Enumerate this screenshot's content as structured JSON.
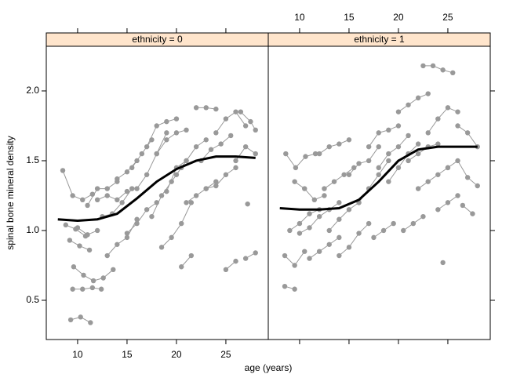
{
  "chart_data": {
    "type": "lattice-spaghetti",
    "xlabel": "age (years)",
    "ylabel": "spinal bone mineral density",
    "xlim": [
      6.83,
      29.29
    ],
    "ylim": [
      0.219,
      2.32
    ],
    "xticks": [
      10,
      15,
      20,
      25
    ],
    "yticks": [
      0.5,
      {
        "value": 1,
        "label": "1.0"
      },
      1.5,
      {
        "value": 2,
        "label": "2.0"
      }
    ],
    "point_color": "#999999",
    "smooth_color": "#000000",
    "strip_color": "#ffe5cc",
    "panels": [
      {
        "strip": "ethnicity = 0",
        "subjects": [
          {
            "x": [
              9.3,
              10.3,
              11.3
            ],
            "y": [
              0.36,
              0.38,
              0.34
            ]
          },
          {
            "x": [
              9.5,
              10.5,
              11.5,
              12.4
            ],
            "y": [
              0.58,
              0.58,
              0.59,
              0.58
            ]
          },
          {
            "x": [
              9.6,
              10.6,
              11.6,
              12.6,
              13.6
            ],
            "y": [
              0.74,
              0.68,
              0.64,
              0.66,
              0.72
            ]
          },
          {
            "x": [
              8.5,
              9.5,
              10.5,
              11.5
            ],
            "y": [
              1.43,
              1.25,
              1.22,
              1.26
            ]
          },
          {
            "x": [
              8.8,
              9.8,
              10.8
            ],
            "y": [
              1.04,
              1.01,
              0.96
            ]
          },
          {
            "x": [
              9.2,
              10.2,
              11.2
            ],
            "y": [
              0.93,
              0.89,
              0.86
            ]
          },
          {
            "x": [
              10,
              11,
              12
            ],
            "y": [
              1.02,
              0.97,
              1.0
            ]
          },
          {
            "x": [
              11,
              12,
              13,
              14
            ],
            "y": [
              1.18,
              1.3,
              1.3,
              1.35
            ]
          },
          {
            "x": [
              12,
              13,
              14,
              15
            ],
            "y": [
              1.22,
              1.25,
              1.22,
              1.28
            ]
          },
          {
            "x": [
              12.5,
              13.5,
              14.5,
              15.5
            ],
            "y": [
              1.1,
              1.12,
              1.2,
              1.3
            ]
          },
          {
            "x": [
              13,
              14,
              15,
              16
            ],
            "y": [
              0.82,
              0.9,
              0.95,
              1.08
            ]
          },
          {
            "x": [
              14,
              15,
              16
            ],
            "y": [
              1.37,
              1.42,
              1.5
            ]
          },
          {
            "x": [
              15,
              16,
              17,
              18
            ],
            "y": [
              0.98,
              1.05,
              1.15,
              1.2
            ]
          },
          {
            "x": [
              15.5,
              16.5,
              17.5
            ],
            "y": [
              1.45,
              1.55,
              1.65
            ]
          },
          {
            "x": [
              16,
              17,
              18,
              19
            ],
            "y": [
              1.3,
              1.4,
              1.55,
              1.7
            ]
          },
          {
            "x": [
              17,
              18,
              19,
              20
            ],
            "y": [
              1.6,
              1.75,
              1.78,
              1.8
            ]
          },
          {
            "x": [
              17.5,
              18.5,
              19.5,
              20.5
            ],
            "y": [
              1.1,
              1.25,
              1.35,
              1.45
            ]
          },
          {
            "x": [
              18,
              19,
              20,
              21
            ],
            "y": [
              1.55,
              1.65,
              1.7,
              1.72
            ]
          },
          {
            "x": [
              18.5,
              19.5,
              20.5,
              21.5
            ],
            "y": [
              0.88,
              0.95,
              1.05,
              1.2
            ]
          },
          {
            "x": [
              19,
              20,
              21
            ],
            "y": [
              1.28,
              1.45,
              1.5
            ]
          },
          {
            "x": [
              20,
              21,
              22,
              23
            ],
            "y": [
              1.4,
              1.5,
              1.6,
              1.65
            ]
          },
          {
            "x": [
              20.5,
              21.5
            ],
            "y": [
              0.74,
              0.82
            ]
          },
          {
            "x": [
              21,
              22,
              23,
              24
            ],
            "y": [
              1.2,
              1.25,
              1.3,
              1.35
            ]
          },
          {
            "x": [
              22,
              23,
              24
            ],
            "y": [
              1.88,
              1.88,
              1.87
            ]
          },
          {
            "x": [
              22.5,
              23.5,
              24.5,
              25.5
            ],
            "y": [
              1.5,
              1.58,
              1.62,
              1.68
            ]
          },
          {
            "x": [
              23,
              24,
              25,
              26
            ],
            "y": [
              1.3,
              1.32,
              1.4,
              1.45
            ]
          },
          {
            "x": [
              24,
              25,
              26,
              27
            ],
            "y": [
              1.7,
              1.8,
              1.85,
              1.75
            ]
          },
          {
            "x": [
              25,
              26
            ],
            "y": [
              0.72,
              0.78
            ]
          },
          {
            "x": [
              26,
              27,
              28
            ],
            "y": [
              1.5,
              1.6,
              1.55
            ]
          },
          {
            "x": [
              27,
              28
            ],
            "y": [
              0.8,
              0.84
            ]
          },
          {
            "x": [
              27.2
            ],
            "y": [
              1.19
            ]
          },
          {
            "x": [
              26.5,
              27.5,
              28
            ],
            "y": [
              1.85,
              1.78,
              1.72
            ]
          }
        ],
        "smooth": {
          "x": [
            8,
            10,
            12,
            14,
            16,
            18,
            20,
            22,
            24,
            26,
            28
          ],
          "y": [
            1.08,
            1.07,
            1.08,
            1.12,
            1.23,
            1.35,
            1.44,
            1.5,
            1.53,
            1.53,
            1.52
          ]
        }
      },
      {
        "strip": "ethnicity = 1",
        "subjects": [
          {
            "x": [
              8.5,
              9.5
            ],
            "y": [
              0.6,
              0.58
            ]
          },
          {
            "x": [
              8.5,
              9.5,
              10.5
            ],
            "y": [
              0.82,
              0.75,
              0.85
            ]
          },
          {
            "x": [
              8.6,
              9.6,
              10.6,
              11.6
            ],
            "y": [
              1.55,
              1.45,
              1.53,
              1.55
            ]
          },
          {
            "x": [
              9,
              10,
              11,
              12
            ],
            "y": [
              1.0,
              1.05,
              1.12,
              1.15
            ]
          },
          {
            "x": [
              9.5,
              10.5,
              11.5,
              12.5
            ],
            "y": [
              1.35,
              1.3,
              1.22,
              1.25
            ]
          },
          {
            "x": [
              10,
              11,
              12,
              13,
              14
            ],
            "y": [
              0.98,
              1.02,
              1.1,
              1.15,
              1.2
            ]
          },
          {
            "x": [
              11,
              12,
              13,
              14
            ],
            "y": [
              0.8,
              0.85,
              0.9,
              0.95
            ]
          },
          {
            "x": [
              12,
              13,
              14,
              15
            ],
            "y": [
              1.55,
              1.6,
              1.62,
              1.65
            ]
          },
          {
            "x": [
              12.5,
              13.5,
              14.5,
              15.5
            ],
            "y": [
              1.3,
              1.35,
              1.4,
              1.45
            ]
          },
          {
            "x": [
              13,
              14,
              15,
              16
            ],
            "y": [
              1.0,
              1.08,
              1.15,
              1.2
            ]
          },
          {
            "x": [
              14,
              15,
              16,
              17
            ],
            "y": [
              0.82,
              0.88,
              0.98,
              1.05
            ]
          },
          {
            "x": [
              15,
              16,
              17,
              18
            ],
            "y": [
              1.4,
              1.48,
              1.5,
              1.6
            ]
          },
          {
            "x": [
              16,
              17,
              18,
              19
            ],
            "y": [
              1.2,
              1.3,
              1.4,
              1.5
            ]
          },
          {
            "x": [
              17,
              18,
              19,
              20
            ],
            "y": [
              1.6,
              1.7,
              1.72,
              1.75
            ]
          },
          {
            "x": [
              17.5,
              18.5,
              19.5
            ],
            "y": [
              0.95,
              1.0,
              1.05
            ]
          },
          {
            "x": [
              18,
              19,
              20,
              21
            ],
            "y": [
              1.45,
              1.55,
              1.6,
              1.68
            ]
          },
          {
            "x": [
              19,
              20,
              21,
              22
            ],
            "y": [
              1.35,
              1.45,
              1.55,
              1.62
            ]
          },
          {
            "x": [
              20,
              21,
              22,
              23
            ],
            "y": [
              1.85,
              1.9,
              1.95,
              1.98
            ]
          },
          {
            "x": [
              20.5,
              21.5,
              22.5
            ],
            "y": [
              1.0,
              1.05,
              1.1
            ]
          },
          {
            "x": [
              21,
              22,
              23,
              24
            ],
            "y": [
              1.5,
              1.55,
              1.6,
              1.62
            ]
          },
          {
            "x": [
              22,
              23,
              24,
              25
            ],
            "y": [
              1.3,
              1.35,
              1.4,
              1.45
            ]
          },
          {
            "x": [
              22.5,
              23.5,
              24.5,
              25.5
            ],
            "y": [
              2.18,
              2.18,
              2.15,
              2.13
            ]
          },
          {
            "x": [
              23,
              24,
              25,
              26
            ],
            "y": [
              1.7,
              1.8,
              1.88,
              1.85
            ]
          },
          {
            "x": [
              24,
              25,
              26
            ],
            "y": [
              1.15,
              1.2,
              1.25
            ]
          },
          {
            "x": [
              24.5
            ],
            "y": [
              0.77
            ]
          },
          {
            "x": [
              25,
              26,
              27,
              28
            ],
            "y": [
              1.45,
              1.5,
              1.38,
              1.32
            ]
          },
          {
            "x": [
              26,
              27,
              28
            ],
            "y": [
              1.75,
              1.7,
              1.6
            ]
          },
          {
            "x": [
              26.5,
              27.5
            ],
            "y": [
              1.18,
              1.12
            ]
          }
        ],
        "smooth": {
          "x": [
            8,
            10,
            12,
            14,
            16,
            18,
            20,
            22,
            24,
            26,
            28
          ],
          "y": [
            1.16,
            1.15,
            1.15,
            1.16,
            1.22,
            1.35,
            1.5,
            1.58,
            1.6,
            1.6,
            1.6
          ]
        }
      }
    ]
  }
}
